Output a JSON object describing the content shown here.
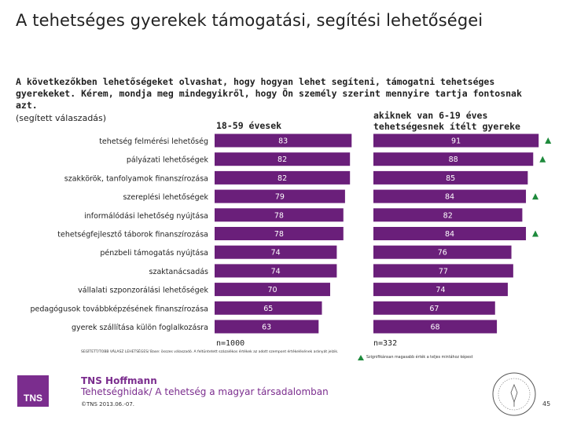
{
  "title": "A tehetséges gyerekek támogatási, segítési lehetőségei",
  "question": "A következőkben lehetőségeket olvashat, hogy hogyan lehet segíteni, támogatni tehetséges gyerekeket. Kérem, mondja meg mindegyikről, hogy Ön személy szerint mennyire tartja fontosnak azt.",
  "instruction": "(segített válaszadás)",
  "chart_data": {
    "type": "bar",
    "categories": [
      "tehetség felmérési lehetőség",
      "pályázati lehetőségek",
      "szakkörök, tanfolyamok finanszírozása",
      "szereplési lehetőségek",
      "informálódási lehetőség nyújtása",
      "tehetségfejlesztő táborok finanszírozása",
      "pénzbeli támogatás nyújtása",
      "szaktanácsadás",
      "vállalati szponzorálási lehetőségek",
      "pedagógusok továbbképzésének finanszírozása",
      "gyerek szállítása külön foglalkozásra"
    ],
    "series": [
      {
        "name": "18-59 évesek",
        "values": [
          83,
          82,
          82,
          79,
          78,
          78,
          74,
          74,
          70,
          65,
          63
        ],
        "n": "n=1000"
      },
      {
        "name": "akiknek van 6-19 éves tehetségesnek ítélt gyereke",
        "values": [
          91,
          88,
          85,
          84,
          82,
          84,
          76,
          77,
          74,
          67,
          68
        ],
        "n": "n=332"
      }
    ],
    "significant": [
      true,
      true,
      false,
      true,
      false,
      true,
      false,
      false,
      false,
      false,
      false
    ],
    "bar_color": "#6a1f7a",
    "marker_color": "#1e8a3c"
  },
  "note": "SEGÍTETT/TOBB VÁLASZ LEHETSÉGES/ Base: összes válaszadó. A feltüntetett százalékos értékek az adott szempont értékelésének arányát jelzik.",
  "legend_note": "Szignifikánsan magasabb érték a teljes mintához képest",
  "logo": "TNS",
  "brand": "TNS Hoffmann",
  "subtitle": "Tehetséghidak/ A tehetség a magyar társadalomban",
  "copyright": "©TNS 2013.06.-07.",
  "page_number": "45"
}
